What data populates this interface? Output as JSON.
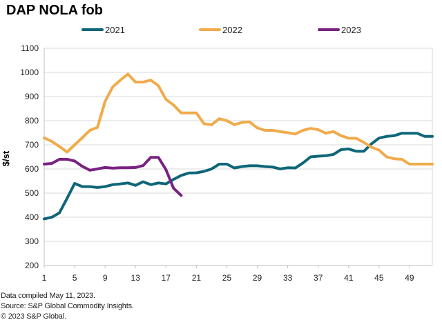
{
  "page": {
    "title": "DAP NOLA fob"
  },
  "footer": {
    "line1": "Data compiled May 11, 2023.",
    "line2": "Source: S&P Global Commodity Insights.",
    "line3": "© 2023 S&P Global."
  },
  "chart_data": {
    "type": "line",
    "title": "DAP NOLA fob",
    "xlabel": "",
    "ylabel": "$/st",
    "xlim": [
      1,
      52
    ],
    "ylim": [
      200,
      1100
    ],
    "y_ticks": [
      200,
      300,
      400,
      500,
      600,
      700,
      800,
      900,
      1000,
      1100
    ],
    "x_ticks": [
      1,
      5,
      9,
      13,
      17,
      21,
      25,
      29,
      33,
      37,
      41,
      45,
      49
    ],
    "grid": "horizontal",
    "legend_position": "top",
    "series": [
      {
        "name": "2021",
        "color": "#0e6678",
        "values": [
          393,
          400,
          418,
          478,
          540,
          527,
          527,
          523,
          527,
          535,
          538,
          542,
          532,
          547,
          535,
          542,
          538,
          557,
          573,
          583,
          584,
          590,
          600,
          620,
          620,
          604,
          610,
          613,
          613,
          610,
          608,
          600,
          605,
          604,
          625,
          650,
          653,
          655,
          660,
          680,
          683,
          673,
          673,
          704,
          728,
          735,
          738,
          748,
          748,
          748,
          735,
          735
        ]
      },
      {
        "name": "2022",
        "color": "#f0ab4a",
        "values": [
          729,
          714,
          693,
          670,
          700,
          729,
          760,
          772,
          880,
          940,
          968,
          993,
          960,
          960,
          968,
          945,
          888,
          865,
          832,
          832,
          832,
          787,
          783,
          808,
          800,
          783,
          793,
          795,
          770,
          760,
          760,
          755,
          750,
          745,
          760,
          768,
          763,
          748,
          755,
          738,
          727,
          727,
          710,
          690,
          678,
          650,
          642,
          640,
          620,
          620,
          620,
          620
        ]
      },
      {
        "name": "2023",
        "color": "#7a2182",
        "values": [
          620,
          623,
          640,
          640,
          633,
          611,
          595,
          600,
          606,
          603,
          605,
          605,
          606,
          614,
          648,
          648,
          597,
          520,
          490
        ]
      }
    ]
  }
}
